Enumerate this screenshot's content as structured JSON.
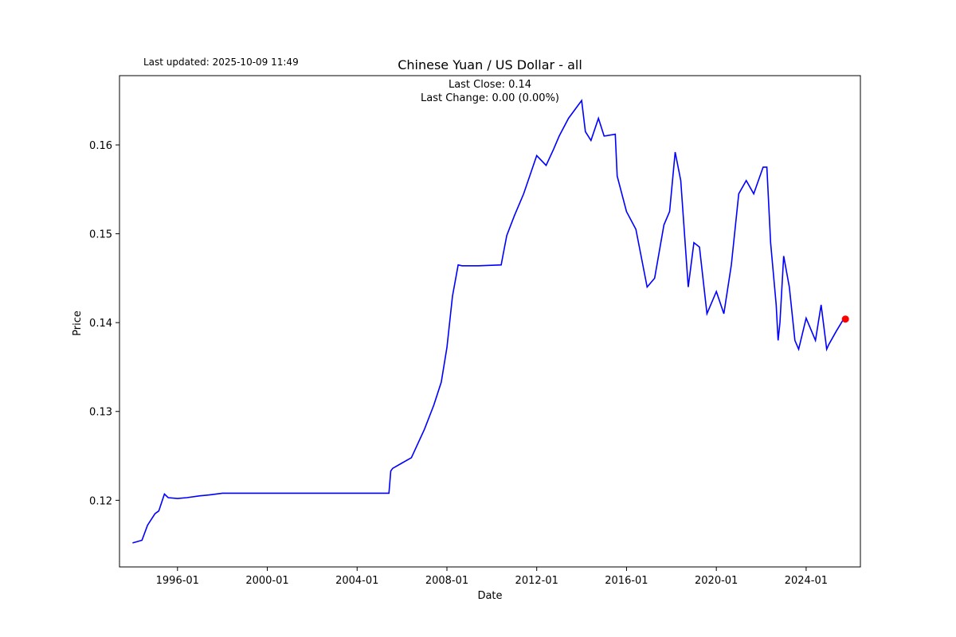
{
  "header": {
    "last_updated": "Last updated: 2025-10-09 11:49"
  },
  "chart_data": {
    "type": "line",
    "title": "Chinese Yuan / US Dollar - all",
    "xlabel": "Date",
    "ylabel": "Price",
    "annotation": {
      "line1": "Last Close: 0.14",
      "line2": "Last Change: 0.00 (0.00%)"
    },
    "x_ticks": [
      "1996-01",
      "2000-01",
      "2004-01",
      "2008-01",
      "2012-01",
      "2016-01",
      "2020-01",
      "2024-01"
    ],
    "y_ticks": [
      "0.12",
      "0.13",
      "0.14",
      "0.15",
      "0.16"
    ],
    "xlim": [
      "1993-06",
      "2026-06"
    ],
    "ylim": [
      0.1125,
      0.1678
    ],
    "grid": false,
    "line_color": "#0000ff",
    "marker_color": "#ff0000",
    "series": [
      {
        "x": [
          "1994-01",
          "1994-06",
          "1994-09",
          "1995-01",
          "1995-03",
          "1995-06",
          "1995-08",
          "1996-01",
          "1996-06",
          "1997-01",
          "1997-06",
          "1998-01",
          "2000-01",
          "2003-01",
          "2005-06",
          "2005-07",
          "2005-08",
          "2006-01",
          "2006-06",
          "2007-01",
          "2007-06",
          "2007-10",
          "2008-01",
          "2008-04",
          "2008-07",
          "2008-09",
          "2009-06",
          "2010-06",
          "2010-07",
          "2010-09",
          "2011-01",
          "2011-06",
          "2012-01",
          "2012-06",
          "2012-10",
          "2013-01",
          "2013-06",
          "2014-01",
          "2014-03",
          "2014-06",
          "2014-10",
          "2015-01",
          "2015-07",
          "2015-08",
          "2016-01",
          "2016-06",
          "2016-12",
          "2017-04",
          "2017-09",
          "2017-12",
          "2018-03",
          "2018-06",
          "2018-10",
          "2019-01",
          "2019-04",
          "2019-08",
          "2020-01",
          "2020-05",
          "2020-09",
          "2021-01",
          "2021-05",
          "2021-09",
          "2022-02",
          "2022-04",
          "2022-06",
          "2022-09",
          "2022-10",
          "2022-11",
          "2023-01",
          "2023-04",
          "2023-07",
          "2023-09",
          "2024-01",
          "2024-06",
          "2024-09",
          "2024-12",
          "2025-01",
          "2025-05",
          "2025-09"
        ],
        "y": [
          0.1152,
          0.1155,
          0.1172,
          0.1185,
          0.1188,
          0.1207,
          0.1203,
          0.1202,
          0.1203,
          0.1205,
          0.1206,
          0.1208,
          0.1208,
          0.1208,
          0.1208,
          0.1233,
          0.1236,
          0.1242,
          0.1248,
          0.128,
          0.1307,
          0.1333,
          0.1372,
          0.143,
          0.1465,
          0.1464,
          0.1464,
          0.1465,
          0.1476,
          0.1498,
          0.152,
          0.1545,
          0.1588,
          0.1577,
          0.1595,
          0.161,
          0.163,
          0.165,
          0.1615,
          0.1605,
          0.163,
          0.161,
          0.1612,
          0.1565,
          0.1525,
          0.1505,
          0.144,
          0.145,
          0.151,
          0.1525,
          0.1592,
          0.156,
          0.144,
          0.149,
          0.1485,
          0.141,
          0.1435,
          0.141,
          0.1465,
          0.1545,
          0.156,
          0.1545,
          0.1575,
          0.1575,
          0.149,
          0.142,
          0.138,
          0.14,
          0.1475,
          0.144,
          0.138,
          0.137,
          0.1405,
          0.138,
          0.142,
          0.137,
          0.1375,
          0.139,
          0.1404
        ]
      }
    ],
    "last_point": {
      "x": "2025-10",
      "y": 0.1404
    }
  }
}
